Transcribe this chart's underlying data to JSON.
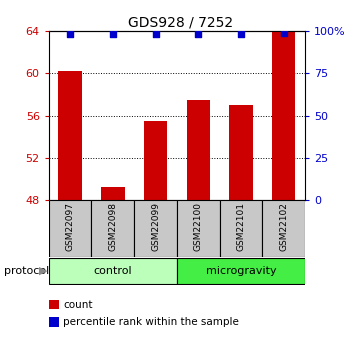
{
  "title": "GDS928 / 7252",
  "samples": [
    "GSM22097",
    "GSM22098",
    "GSM22099",
    "GSM22100",
    "GSM22101",
    "GSM22102"
  ],
  "red_values": [
    60.2,
    49.2,
    55.5,
    57.5,
    57.0,
    64.0
  ],
  "blue_values": [
    98,
    98,
    98,
    98,
    98,
    99
  ],
  "ylim_left": [
    48,
    64
  ],
  "ylim_right": [
    0,
    100
  ],
  "yticks_left": [
    48,
    52,
    56,
    60,
    64
  ],
  "yticks_right": [
    0,
    25,
    50,
    75,
    100
  ],
  "ytick_labels_right": [
    "0",
    "25",
    "50",
    "75",
    "100%"
  ],
  "bar_color": "#cc0000",
  "dot_color": "#0000cc",
  "groups": [
    {
      "label": "control",
      "color": "#bbffbb",
      "start": 0,
      "end": 2
    },
    {
      "label": "microgravity",
      "color": "#44ee44",
      "start": 3,
      "end": 5
    }
  ],
  "protocol_label": "protocol",
  "legend_items": [
    {
      "color": "#cc0000",
      "label": "count"
    },
    {
      "color": "#0000cc",
      "label": "percentile rank within the sample"
    }
  ],
  "bar_width": 0.55,
  "left_label_color": "#cc0000",
  "right_label_color": "#0000cc",
  "sample_box_color": "#c8c8c8",
  "title_fontsize": 10,
  "tick_fontsize": 8,
  "sample_fontsize": 6.5,
  "protocol_fontsize": 8,
  "legend_fontsize": 7.5
}
